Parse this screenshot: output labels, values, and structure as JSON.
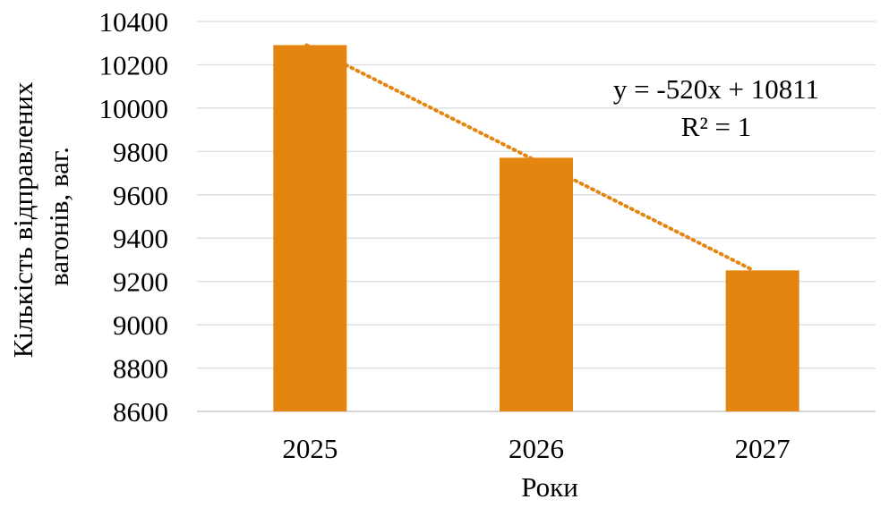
{
  "chart_data": {
    "type": "bar",
    "categories": [
      "2025",
      "2026",
      "2027"
    ],
    "values": [
      10291,
      9771,
      9251
    ],
    "title": "",
    "xlabel": "Роки",
    "ylabel": "Кількість відправлених вагонів, ваг.",
    "ylabel_lines": [
      "Кількість відправлених",
      "вагонів, ваг."
    ],
    "ylim": [
      8600,
      10400
    ],
    "yticks": [
      8600,
      8800,
      9000,
      9200,
      9400,
      9600,
      9800,
      10000,
      10200,
      10400
    ],
    "grid": true,
    "legend": "none",
    "bar_color": "#E3850F",
    "trendline": {
      "type": "linear",
      "slope": -520,
      "intercept": 10811,
      "color": "#E3850F",
      "style": "dotted",
      "equation": "y = -520x + 10811",
      "r_squared": "R² = 1"
    }
  }
}
